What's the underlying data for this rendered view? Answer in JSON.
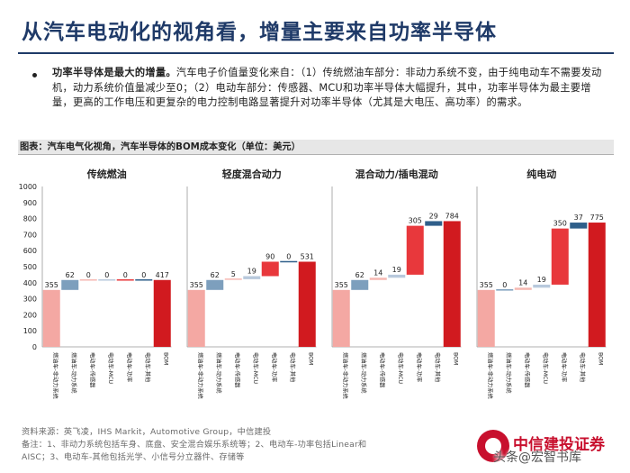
{
  "header": {
    "title": "从汽车电动化的视角看，增量主要来自功率半导体"
  },
  "bullet": {
    "lead": "功率半导体是最大的增量。",
    "body": "汽车电子价值量变化来自：（1）传统燃油车部分：非动力系统不变，由于纯电动车不需要发动机，动力系统价值量减少至0；（2）电动车部分：传感器、MCU和功率半导体大幅提升，其中，功率半导体为最主要增量，更高的工作电压和更复杂的电力控制电路显著提升对功率半导体（尤其是大电压、高功率）的需求。"
  },
  "figure": {
    "caption": "图表：汽车电气化视角，汽车半导体的BOM成本变化（单位：美元）"
  },
  "footer": {
    "source": "资料来源：英飞凌，IHS Markit，Automotive Group，中信建投",
    "note1": "备注：1、非动力系统包括车身、底盘、安全混合娱乐系统等；2、电动车-功率包括Linear和",
    "note2": "AISC；3、电动车-其他包括光学、小信号分立器件、存储等"
  },
  "logo": {
    "name": "中信建投证券",
    "watermark": "头条@宏智书库"
  },
  "colors": {
    "title": "#1f3a68",
    "nonpower": "#f4a8a3",
    "engine": "#7d9fbd",
    "sensor": "#f6b8b2",
    "mcu": "#b8c9dc",
    "power": "#e8383c",
    "other": "#2f5f8a",
    "bom": "#d11a1f"
  },
  "chart_data": [
    {
      "type": "bar",
      "subtype": "waterfall",
      "title": "传统燃油",
      "categories": [
        "燃油车-非动力系统",
        "燃油车-动力系统",
        "电动车-传感器",
        "电动车-MCU",
        "电动车-功率",
        "电动车-其他",
        "BOM"
      ],
      "values": [
        355,
        62,
        0,
        0,
        0,
        0,
        417
      ],
      "ylim": [
        0,
        1000
      ],
      "yticks": [
        0,
        100,
        200,
        300,
        400,
        500,
        600,
        700,
        800,
        900,
        1000
      ]
    },
    {
      "type": "bar",
      "subtype": "waterfall",
      "title": "轻度混合动力",
      "categories": [
        "燃油车-非动力系统",
        "燃油车-动力系统",
        "电动车-传感器",
        "电动车-MCU",
        "电动车-功率",
        "电动车-其他",
        "BOM"
      ],
      "values": [
        355,
        62,
        5,
        19,
        90,
        0,
        531
      ],
      "ylim": [
        0,
        1000
      ]
    },
    {
      "type": "bar",
      "subtype": "waterfall",
      "title": "混合动力/插电混动",
      "categories": [
        "燃油车-非动力系统",
        "燃油车-动力系统",
        "电动车-传感器",
        "电动车-MCU",
        "电动车-功率",
        "电动车-其他",
        "BOM"
      ],
      "values": [
        355,
        62,
        14,
        19,
        305,
        29,
        784
      ],
      "ylim": [
        0,
        1000
      ]
    },
    {
      "type": "bar",
      "subtype": "waterfall",
      "title": "纯电动",
      "categories": [
        "燃油车-非动力系统",
        "燃油车-动力系统",
        "电动车-传感器",
        "电动车-MCU",
        "电动车-功率",
        "电动车-其他",
        "BOM"
      ],
      "values": [
        355,
        0,
        14,
        19,
        350,
        37,
        775
      ],
      "ylim": [
        0,
        1000
      ]
    }
  ]
}
